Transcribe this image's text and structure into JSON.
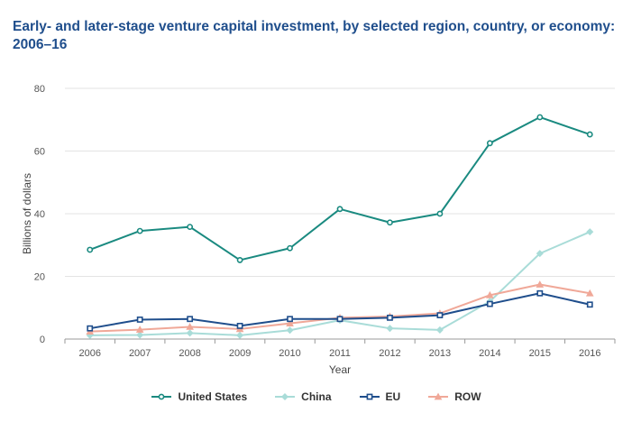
{
  "title": "Early- and later-stage venture capital investment, by selected region, country, or economy: 2006–16",
  "colors": {
    "title": "#1f4e8c",
    "grid": "#e3e3e3",
    "axis": "#999999"
  },
  "chart_data": {
    "type": "line",
    "title": "Early- and later-stage venture capital investment, by selected region, country, or economy: 2006–16",
    "xlabel": "Year",
    "ylabel": "Billions of dollars",
    "x": [
      "2006",
      "2007",
      "2008",
      "2009",
      "2010",
      "2011",
      "2012",
      "2013",
      "2014",
      "2015",
      "2016"
    ],
    "ylim": [
      0,
      80
    ],
    "yticks": [
      0,
      20,
      40,
      60,
      80
    ],
    "grid": "horizontal",
    "legend_position": "bottom",
    "series": [
      {
        "name": "United States",
        "color": "#1a8a80",
        "marker": "circle",
        "values": [
          28.5,
          34.5,
          35.8,
          25.2,
          29.0,
          41.5,
          37.2,
          40.0,
          62.5,
          70.8,
          65.3
        ]
      },
      {
        "name": "China",
        "color": "#a9dcd8",
        "marker": "diamond",
        "values": [
          1.2,
          1.3,
          1.9,
          1.2,
          2.8,
          6.0,
          3.4,
          2.9,
          12.0,
          27.3,
          34.2
        ]
      },
      {
        "name": "EU",
        "color": "#1f4e8c",
        "marker": "square",
        "values": [
          3.4,
          6.2,
          6.4,
          4.2,
          6.4,
          6.4,
          6.8,
          7.6,
          11.2,
          14.6,
          11.0
        ]
      },
      {
        "name": "ROW",
        "color": "#f0a898",
        "marker": "triangle",
        "values": [
          2.4,
          3.0,
          3.9,
          3.2,
          5.0,
          6.8,
          7.2,
          8.2,
          14.0,
          17.4,
          14.6
        ]
      }
    ]
  }
}
